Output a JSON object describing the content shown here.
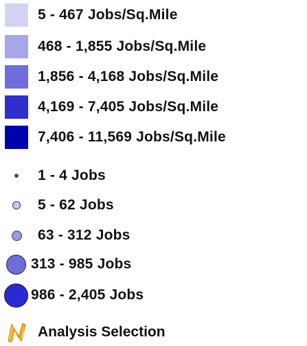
{
  "legend": {
    "density": [
      {
        "label": "5 - 467  Jobs/Sq.Mile",
        "color": "#d3d3f3"
      },
      {
        "label": "468 - 1,855  Jobs/Sq.Mile",
        "color": "#a6a6ea"
      },
      {
        "label": "1,856 - 4,168  Jobs/Sq.Mile",
        "color": "#6d6ddd"
      },
      {
        "label": "4,169 - 7,405  Jobs/Sq.Mile",
        "color": "#2f2fcb"
      },
      {
        "label": "7,406 - 11,569  Jobs/Sq.Mile",
        "color": "#0000b0"
      }
    ],
    "points": [
      {
        "label": "1 - 4 Jobs",
        "fill": "#4b4b6b"
      },
      {
        "label": "5 - 62 Jobs",
        "fill": "#c8c8ee"
      },
      {
        "label": "63 - 312 Jobs",
        "fill": "#9a9adf"
      },
      {
        "label": "313 - 985 Jobs",
        "fill": "#6e6ed9"
      },
      {
        "label": "986 - 2,405 Jobs",
        "fill": "#2a2ad2"
      }
    ],
    "analysis": {
      "label": "Analysis Selection",
      "icon": "analysis-selection-icon",
      "color": "#f5a623"
    }
  }
}
